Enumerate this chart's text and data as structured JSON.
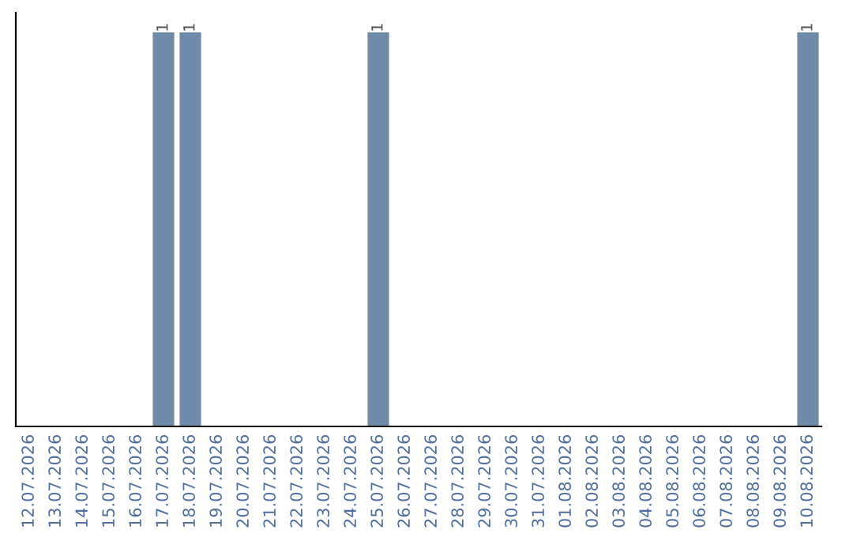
{
  "chart_data": {
    "type": "bar",
    "categories": [
      "12.07.2026",
      "13.07.2026",
      "14.07.2026",
      "15.07.2026",
      "16.07.2026",
      "17.07.2026",
      "18.07.2026",
      "19.07.2026",
      "20.07.2026",
      "21.07.2026",
      "22.07.2026",
      "23.07.2026",
      "24.07.2026",
      "25.07.2026",
      "26.07.2026",
      "27.07.2026",
      "28.07.2026",
      "29.07.2026",
      "30.07.2026",
      "31.07.2026",
      "01.08.2026",
      "02.08.2026",
      "03.08.2026",
      "04.08.2026",
      "05.08.2026",
      "06.08.2026",
      "07.08.2026",
      "08.08.2026",
      "09.08.2026",
      "10.08.2026"
    ],
    "values": [
      0,
      0,
      0,
      0,
      0,
      1,
      1,
      0,
      0,
      0,
      0,
      0,
      0,
      1,
      0,
      0,
      0,
      0,
      0,
      0,
      0,
      0,
      0,
      0,
      0,
      0,
      0,
      0,
      0,
      1
    ],
    "value_labels": [
      null,
      null,
      null,
      null,
      null,
      "1",
      "1",
      null,
      null,
      null,
      null,
      null,
      null,
      "1",
      null,
      null,
      null,
      null,
      null,
      null,
      null,
      null,
      null,
      null,
      null,
      null,
      null,
      null,
      null,
      "1"
    ],
    "color": "#6e8caa",
    "tick_labels": "x",
    "grid": false
  }
}
